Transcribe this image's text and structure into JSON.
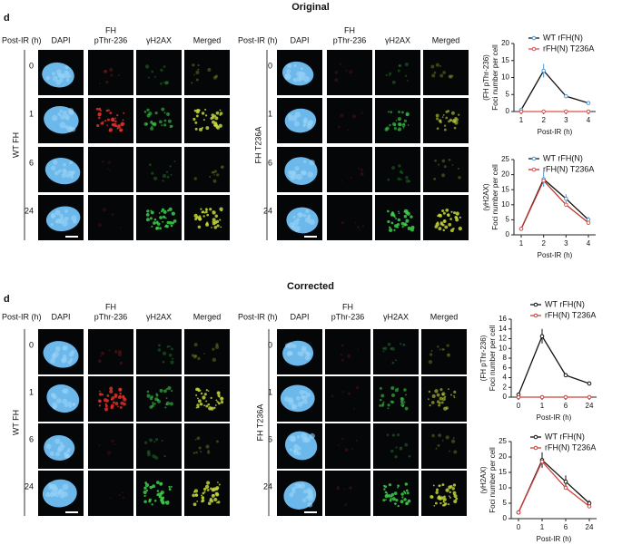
{
  "sections": [
    {
      "title": "Original",
      "panel_letter": "d",
      "groups": [
        {
          "row_header": "Post-IR (h)",
          "label": "WT FH",
          "columns": [
            [
              "DAPI"
            ],
            [
              "FH",
              "pThr-236"
            ],
            [
              "γH2AX"
            ],
            [
              "Merged"
            ]
          ],
          "rows": [
            "0",
            "1",
            "6",
            "24"
          ]
        },
        {
          "row_header": "Post-IR (h)",
          "label": "FH T236A",
          "columns": [
            [
              "DAPI"
            ],
            [
              "FH",
              "pThr-236"
            ],
            [
              "γH2AX"
            ],
            [
              "Merged"
            ]
          ],
          "rows": [
            "0",
            "1",
            "6",
            "24"
          ]
        }
      ]
    },
    {
      "title": "Corrected",
      "panel_letter": "d",
      "groups": [
        {
          "row_header": "Post-IR (h)",
          "label": "WT FH",
          "columns": [
            [
              "DAPI"
            ],
            [
              "FH",
              "pThr-236"
            ],
            [
              "γH2AX"
            ],
            [
              "Merged"
            ]
          ],
          "rows": [
            "0",
            "1",
            "6",
            "24"
          ]
        },
        {
          "row_header": "Post-IR (h)",
          "label": "FH T236A",
          "columns": [
            [
              "DAPI"
            ],
            [
              "FH",
              "pThr-236"
            ],
            [
              "γH2AX"
            ],
            [
              "Merged"
            ]
          ],
          "rows": [
            "0",
            "1",
            "6",
            "24"
          ]
        }
      ]
    }
  ],
  "chart_data": [
    {
      "type": "line",
      "ylabel": [
        "(FH pThr-236)",
        "Foci number per cell"
      ],
      "xlabel": "Post-IR (h)",
      "categories": [
        "1",
        "2",
        "3",
        "4"
      ],
      "ylim": [
        0,
        20
      ],
      "yticks": [
        0,
        5,
        10,
        15,
        20
      ],
      "series": [
        {
          "name": "WT rFH(N)",
          "color": "#4a9ad8",
          "line_color": "#111111",
          "values": [
            0.5,
            12,
            4.5,
            2.5
          ],
          "errors": [
            0.5,
            2,
            0.5,
            0.5
          ]
        },
        {
          "name": "rFH(N) T236A",
          "color": "#e0504a",
          "line_color": "#e0504a",
          "values": [
            0,
            0,
            0,
            0
          ]
        }
      ]
    },
    {
      "type": "line",
      "ylabel": [
        "(γH2AX)",
        "Foci number per cell"
      ],
      "xlabel": "Post-IR (h)",
      "categories": [
        "1",
        "2",
        "3",
        "4"
      ],
      "ylim": [
        0,
        25
      ],
      "yticks": [
        0,
        5,
        10,
        15,
        20,
        25
      ],
      "series": [
        {
          "name": "WT rFH(N)",
          "color": "#4a9ad8",
          "line_color": "#111111",
          "values": [
            2,
            18.5,
            12,
            5
          ],
          "errors": [
            0,
            2.5,
            1.5,
            1
          ]
        },
        {
          "name": "rFH(N) T236A",
          "color": "#e0504a",
          "line_color": "#c0302a",
          "values": [
            2,
            18,
            10,
            4
          ]
        }
      ]
    },
    {
      "type": "line",
      "ylabel": [
        "(FH pThr-236)",
        "Foci number per cell"
      ],
      "xlabel": "Post-IR (h)",
      "categories": [
        "0",
        "1",
        "6",
        "24"
      ],
      "ylim": [
        0,
        16
      ],
      "yticks": [
        0,
        2,
        4,
        6,
        8,
        10,
        12,
        14,
        16
      ],
      "series": [
        {
          "name": "WT rFH(N)",
          "color": "#111111",
          "line_color": "#111111",
          "values": [
            0.5,
            12.5,
            4.5,
            2.8
          ],
          "errors": [
            0.3,
            1.5,
            0.4,
            0.4
          ]
        },
        {
          "name": "rFH(N) T236A",
          "color": "#d0403a",
          "line_color": "#d0403a",
          "values": [
            0,
            0,
            0,
            0
          ]
        }
      ]
    },
    {
      "type": "line",
      "ylabel": [
        "(γH2AX)",
        "Foci number per cell"
      ],
      "xlabel": "Post-IR (h)",
      "categories": [
        "0",
        "1",
        "6",
        "24"
      ],
      "ylim": [
        0,
        25
      ],
      "yticks": [
        0,
        5,
        10,
        15,
        20,
        25
      ],
      "series": [
        {
          "name": "WT rFH(N)",
          "color": "#111111",
          "line_color": "#111111",
          "values": [
            2,
            19,
            12,
            5
          ],
          "errors": [
            0,
            2.5,
            2,
            1
          ]
        },
        {
          "name": "rFH(N) T236A",
          "color": "#d0403a",
          "line_color": "#d0403a",
          "values": [
            2,
            18.5,
            10,
            4
          ]
        }
      ]
    }
  ]
}
